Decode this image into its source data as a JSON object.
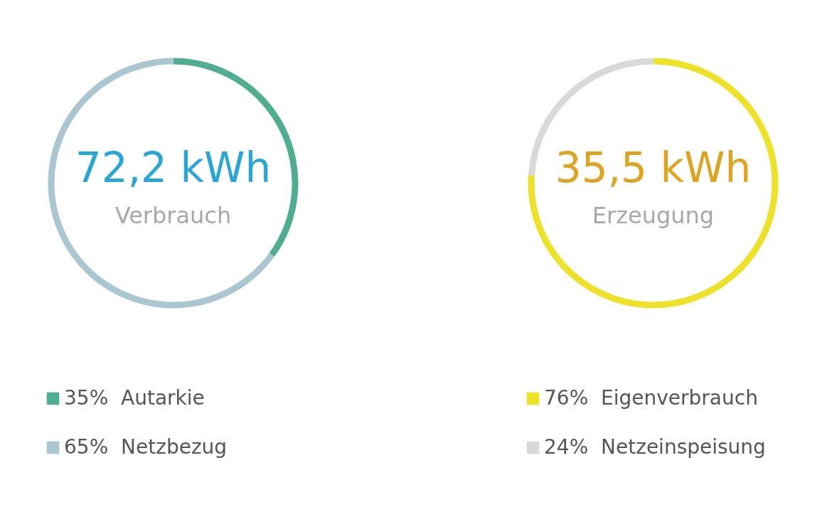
{
  "chart_data": [
    {
      "type": "donut",
      "title": "Verbrauch",
      "annotations": [
        "72,2 kWh"
      ],
      "categories": [
        "Autarkie",
        "Netzbezug"
      ],
      "values": [
        35,
        65
      ],
      "value_labels": [
        "35%",
        "65%"
      ],
      "colors": [
        "#4fae92",
        "#a9c6d1"
      ],
      "legend": "bottom"
    },
    {
      "type": "donut",
      "title": "Erzeugung",
      "annotations": [
        "35,5 kWh"
      ],
      "categories": [
        "Eigenverbrauch",
        "Netzeinspeisung"
      ],
      "values": [
        76,
        24
      ],
      "value_labels": [
        "76%",
        "24%"
      ],
      "colors": [
        "#ede12a",
        "#d9d9d9"
      ],
      "legend": "bottom"
    }
  ]
}
